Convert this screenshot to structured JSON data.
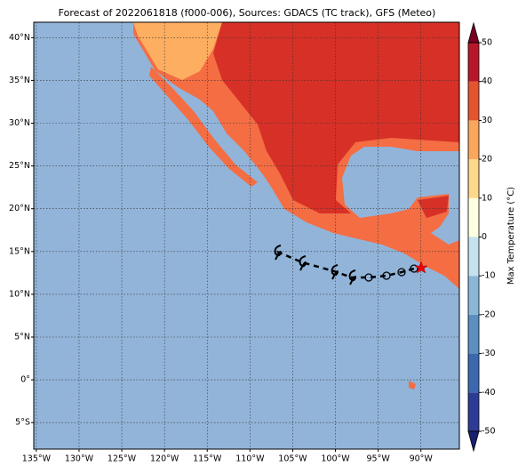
{
  "title": "Forecast of 2022061818 (f000-006), Sources: GDACS (TC track), GFS (Meteo)",
  "map": {
    "xlim": [
      -135.3,
      -85.5
    ],
    "ylim": [
      -8.1,
      41.8
    ],
    "grid": true,
    "xticks": [
      {
        "value": -135,
        "label": "135°W"
      },
      {
        "value": -130,
        "label": "130°W"
      },
      {
        "value": -125,
        "label": "125°W"
      },
      {
        "value": -120,
        "label": "120°W"
      },
      {
        "value": -115,
        "label": "115°W"
      },
      {
        "value": -110,
        "label": "110°W"
      },
      {
        "value": -105,
        "label": "105°W"
      },
      {
        "value": -100,
        "label": "100°W"
      },
      {
        "value": -95,
        "label": "95°W"
      },
      {
        "value": -90,
        "label": "90°W"
      }
    ],
    "yticks": [
      {
        "value": -5,
        "label": "5°S"
      },
      {
        "value": 0,
        "label": "0°"
      },
      {
        "value": 5,
        "label": "5°N"
      },
      {
        "value": 10,
        "label": "10°N"
      },
      {
        "value": 15,
        "label": "15°N"
      },
      {
        "value": 20,
        "label": "20°N"
      },
      {
        "value": 25,
        "label": "25°N"
      },
      {
        "value": 30,
        "label": "30°N"
      },
      {
        "value": 35,
        "label": "35°N"
      },
      {
        "value": 40,
        "label": "40°N"
      }
    ]
  },
  "colorbar": {
    "label": "Max Temperature (°C)",
    "lim": [
      -50,
      50
    ],
    "ticks": [
      -50,
      -40,
      -30,
      -20,
      -10,
      0,
      10,
      20,
      30,
      40,
      50
    ],
    "colors": [
      "#2c3b94",
      "#3c68b0",
      "#5b8fc2",
      "#8ab7d8",
      "#c4e2ee",
      "#fefee0",
      "#fdd88a",
      "#f9a75c",
      "#e3552f",
      "#b8172a"
    ],
    "under": "#1a1f70",
    "over": "#7a0022"
  }
}
